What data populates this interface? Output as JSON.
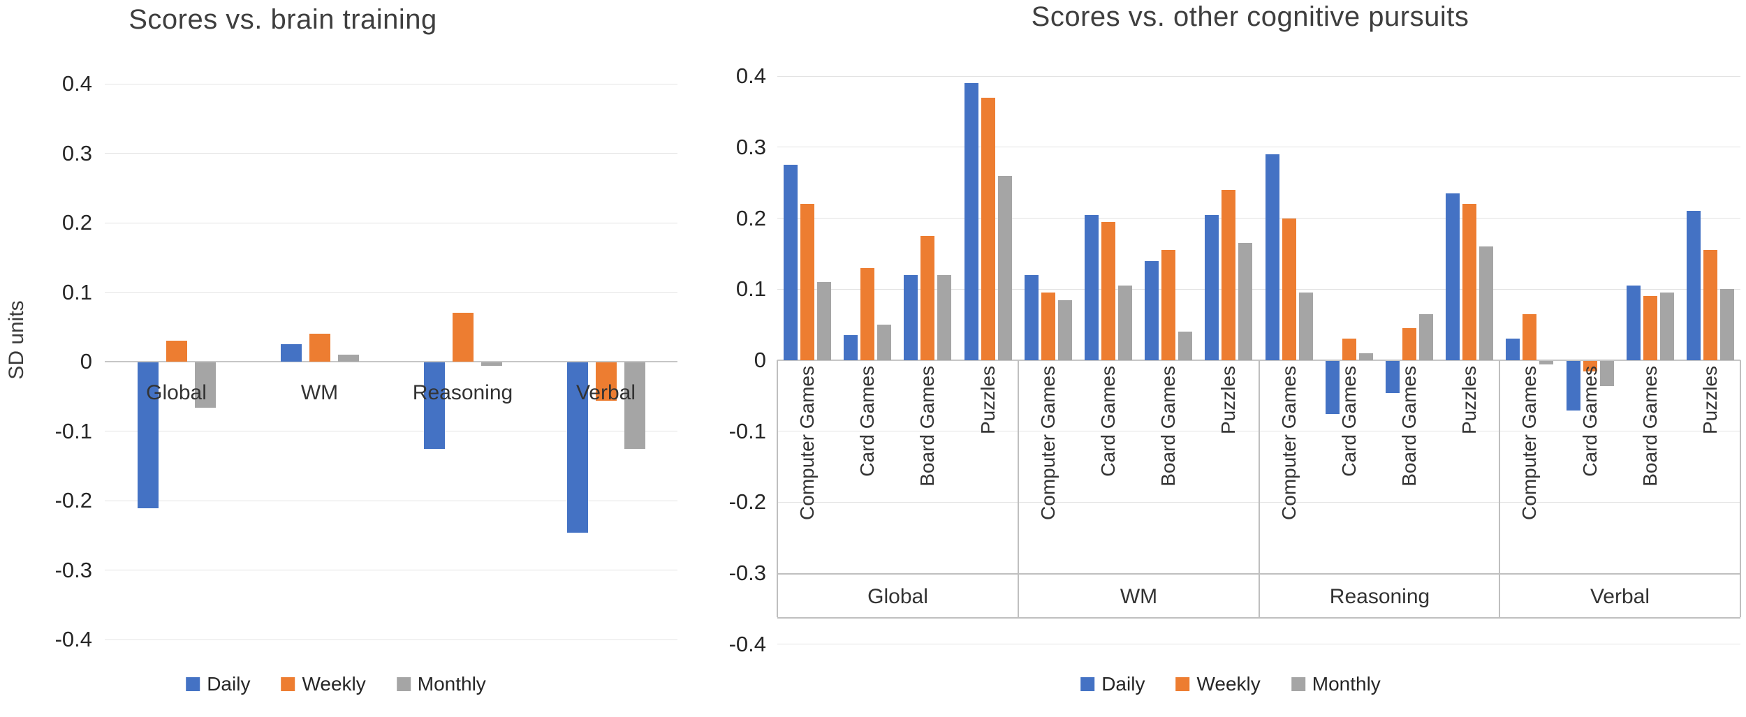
{
  "colors": {
    "daily": "#4472C4",
    "weekly": "#ED7D31",
    "monthly": "#A5A5A5",
    "gridline": "#e3e3e3",
    "zero_axis": "#c6c6c6",
    "table_border": "#bfbfbf",
    "title_text": "#3e3e3e",
    "tick_text": "#262626",
    "label_text": "#333333"
  },
  "legend": {
    "items": [
      {
        "label": "Daily",
        "color": "#4472C4"
      },
      {
        "label": "Weekly",
        "color": "#ED7D31"
      },
      {
        "label": "Monthly",
        "color": "#A5A5A5"
      }
    ]
  },
  "chart_data": [
    {
      "type": "bar",
      "title": "Scores vs. brain training",
      "ylabel": "SD units",
      "xlabel": "",
      "ylim": [
        -0.4,
        0.4
      ],
      "yticks": [
        "0.4",
        "0.3",
        "0.2",
        "0.1",
        "0",
        "-0.1",
        "-0.2",
        "-0.3",
        "-0.4"
      ],
      "grid": true,
      "legend_position": "bottom",
      "categories": [
        "Global",
        "WM",
        "Reasoning",
        "Verbal"
      ],
      "series": [
        {
          "name": "Daily",
          "values": [
            -0.21,
            0.025,
            -0.125,
            -0.245
          ]
        },
        {
          "name": "Weekly",
          "values": [
            0.03,
            0.04,
            0.07,
            -0.055
          ]
        },
        {
          "name": "Monthly",
          "values": [
            -0.065,
            0.01,
            -0.005,
            -0.125
          ]
        }
      ]
    },
    {
      "type": "bar",
      "title": "Scores vs. other cognitive pursuits",
      "ylabel": "",
      "xlabel": "",
      "ylim": [
        -0.4,
        0.4
      ],
      "yticks": [
        "0.4",
        "0.3",
        "0.2",
        "0.1",
        "0",
        "-0.1",
        "-0.2",
        "-0.3",
        "-0.4"
      ],
      "grid": true,
      "legend_position": "bottom",
      "groups": [
        "Global",
        "WM",
        "Reasoning",
        "Verbal"
      ],
      "subcategories": [
        "Computer Games",
        "Card Games",
        "Board Games",
        "Puzzles"
      ],
      "series": [
        {
          "name": "Daily",
          "values": [
            [
              0.275,
              0.035,
              0.12,
              0.39
            ],
            [
              0.12,
              0.205,
              0.14,
              0.205
            ],
            [
              0.29,
              -0.075,
              -0.045,
              0.235
            ],
            [
              0.03,
              -0.07,
              0.105,
              0.21
            ]
          ]
        },
        {
          "name": "Weekly",
          "values": [
            [
              0.22,
              0.13,
              0.175,
              0.37
            ],
            [
              0.095,
              0.195,
              0.155,
              0.24
            ],
            [
              0.2,
              0.03,
              0.045,
              0.22
            ],
            [
              0.065,
              -0.015,
              0.09,
              0.155
            ]
          ]
        },
        {
          "name": "Monthly",
          "values": [
            [
              0.11,
              0.05,
              0.12,
              0.26
            ],
            [
              0.085,
              0.105,
              0.04,
              0.165
            ],
            [
              0.095,
              0.01,
              0.065,
              0.16
            ],
            [
              -0.005,
              -0.035,
              0.095,
              0.1
            ]
          ]
        }
      ]
    }
  ]
}
